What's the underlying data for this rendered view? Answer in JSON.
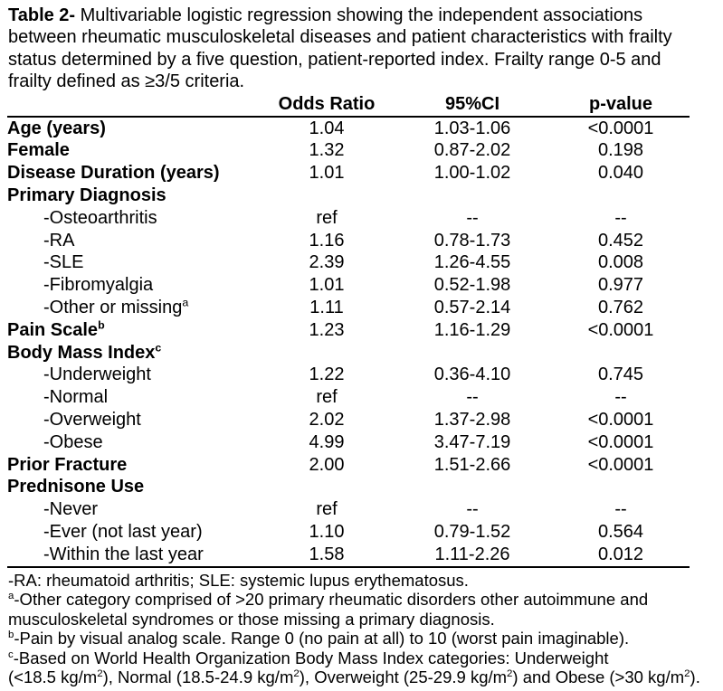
{
  "caption": {
    "label": "Table 2-",
    "text": " Multivariable logistic regression showing the independent associations\nbetween rheumatic musculoskeletal diseases and patient characteristics with frailty\nstatus determined by a five question, patient-reported index. Frailty range 0-5 and\nfrailty defined as ≥3/5 criteria."
  },
  "table": {
    "columns": [
      "",
      "Odds Ratio",
      "95%CI",
      "p-value"
    ],
    "rows": [
      {
        "label": [
          {
            "text": "Age (years)"
          }
        ],
        "or": "1.04",
        "ci": "1.03-1.06",
        "p": "<0.0001"
      },
      {
        "label": [
          {
            "text": "Female"
          }
        ],
        "or": "1.32",
        "ci": "0.87-2.02",
        "p": "0.198"
      },
      {
        "label": [
          {
            "text": "Disease Duration (years)"
          }
        ],
        "or": "1.01",
        "ci": "1.00-1.02",
        "p": "0.040"
      },
      {
        "label": [
          {
            "text": "Primary Diagnosis"
          }
        ],
        "or": "",
        "ci": "",
        "p": ""
      },
      {
        "label": [
          {
            "text": "-Osteoarthritis"
          }
        ],
        "or": "ref",
        "ci": "--",
        "p": "--"
      },
      {
        "label": [
          {
            "text": "-RA"
          }
        ],
        "or": "1.16",
        "ci": "0.78-1.73",
        "p": "0.452"
      },
      {
        "label": [
          {
            "text": "-SLE"
          }
        ],
        "or": "2.39",
        "ci": "1.26-4.55",
        "p": "0.008"
      },
      {
        "label": [
          {
            "text": "-Fibromyalgia"
          }
        ],
        "or": "1.01",
        "ci": "0.52-1.98",
        "p": "0.977"
      },
      {
        "label": [
          {
            "text": "-Other or missing"
          },
          {
            "text": "a",
            "sup": true
          }
        ],
        "or": "1.11",
        "ci": "0.57-2.14",
        "p": "0.762"
      },
      {
        "label": [
          {
            "text": "Pain Scale"
          },
          {
            "text": "b",
            "sup": true
          }
        ],
        "or": "1.23",
        "ci": "1.16-1.29",
        "p": "<0.0001"
      },
      {
        "label": [
          {
            "text": "Body Mass Index"
          },
          {
            "text": "c",
            "sup": true
          }
        ],
        "or": "",
        "ci": "",
        "p": ""
      },
      {
        "label": [
          {
            "text": "-Underweight"
          }
        ],
        "or": "1.22",
        "ci": "0.36-4.10",
        "p": "0.745"
      },
      {
        "label": [
          {
            "text": "-Normal"
          }
        ],
        "or": "ref",
        "ci": "--",
        "p": "--"
      },
      {
        "label": [
          {
            "text": "-Overweight"
          }
        ],
        "or": "2.02",
        "ci": "1.37-2.98",
        "p": "<0.0001"
      },
      {
        "label": [
          {
            "text": "-Obese"
          }
        ],
        "or": "4.99",
        "ci": "3.47-7.19",
        "p": "<0.0001"
      },
      {
        "label": [
          {
            "text": "Prior Fracture"
          }
        ],
        "or": "2.00",
        "ci": "1.51-2.66",
        "p": "<0.0001"
      },
      {
        "label": [
          {
            "text": "Prednisone Use"
          }
        ],
        "or": "",
        "ci": "",
        "p": ""
      },
      {
        "label": [
          {
            "text": "-Never"
          }
        ],
        "or": "ref",
        "ci": "--",
        "p": "--"
      },
      {
        "label": [
          {
            "text": "-Ever (not last year)"
          }
        ],
        "or": "1.10",
        "ci": "0.79-1.52",
        "p": "0.564"
      },
      {
        "label": [
          {
            "text": "-Within the last year"
          }
        ],
        "or": "1.58",
        "ci": "1.11-2.26",
        "p": "0.012"
      }
    ]
  },
  "footnotes": [
    [
      {
        "text": "-RA: rheumatoid arthritis; SLE: systemic lupus erythematosus."
      }
    ],
    [
      {
        "text": "a",
        "sup": true
      },
      {
        "text": "-Other category comprised of >20 primary rheumatic disorders other autoimmune and\nmusculoskeletal syndromes or those missing a primary diagnosis."
      }
    ],
    [
      {
        "text": "b",
        "sup": true
      },
      {
        "text": "-Pain by visual analog scale. Range 0 (no pain at all) to 10 (worst pain imaginable)."
      }
    ],
    [
      {
        "text": "c",
        "sup": true
      },
      {
        "text": "-Based on World Health Organization Body Mass Index categories: Underweight\n(<18.5 kg/m"
      },
      {
        "text": "2",
        "sup": true
      },
      {
        "text": "), Normal (18.5-24.9 kg/m"
      },
      {
        "text": "2",
        "sup": true
      },
      {
        "text": "), Overweight (25-29.9 kg/m"
      },
      {
        "text": "2",
        "sup": true
      },
      {
        "text": ") and Obese (>30 kg/m"
      },
      {
        "text": "2",
        "sup": true
      },
      {
        "text": ")."
      }
    ]
  ]
}
